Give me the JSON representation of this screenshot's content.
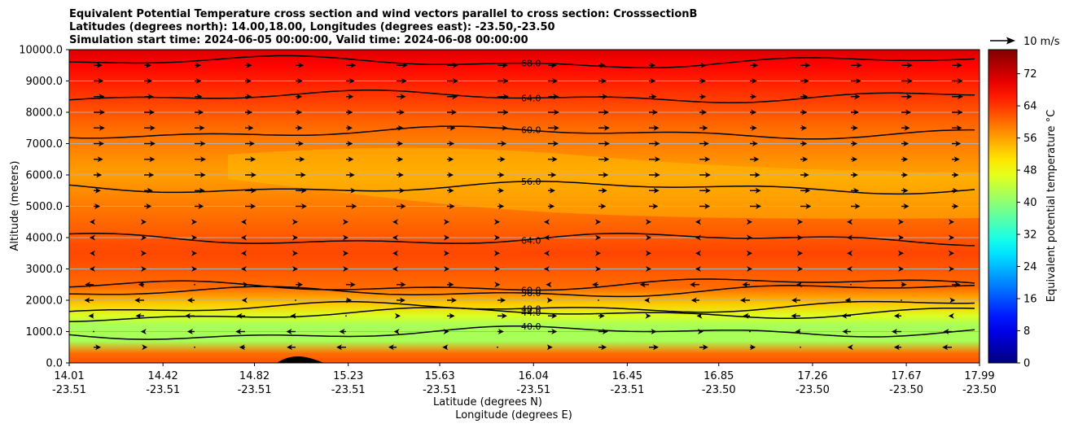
{
  "chart_data": {
    "type": "contour",
    "title_lines": [
      "Equivalent Potential Temperature cross section and wind vectors parallel to cross section: CrosssectionB",
      "Latitudes (degrees north): 14.00,18.00, Longitudes (degrees east): -23.50,-23.50",
      "Simulation start time: 2024-06-05 00:00:00, Valid time: 2024-06-08 00:00:00"
    ],
    "ylabel": "Altitude (meters)",
    "xlabel_lat": "Latitude (degrees N)",
    "xlabel_lon": "Longitude (degrees E)",
    "ylim": [
      0,
      10000
    ],
    "y_ticks": [
      "0.0",
      "1000.0",
      "2000.0",
      "3000.0",
      "4000.0",
      "5000.0",
      "6000.0",
      "7000.0",
      "8000.0",
      "9000.0",
      "10000.0"
    ],
    "x_ticks_lat": [
      "14.01",
      "14.42",
      "14.82",
      "15.23",
      "15.63",
      "16.04",
      "16.45",
      "16.85",
      "17.26",
      "17.67",
      "17.99"
    ],
    "x_ticks_lon": [
      "-23.51",
      "-23.51",
      "-23.51",
      "-23.51",
      "-23.51",
      "-23.51",
      "-23.51",
      "-23.50",
      "-23.50",
      "-23.50",
      "-23.50"
    ],
    "colorbar": {
      "label": "Equivalent potential temperature $^\\circ$C",
      "label_text": "Equivalent potential temperature °C",
      "ticks": [
        "0",
        "8",
        "16",
        "24",
        "32",
        "40",
        "48",
        "56",
        "64",
        "72"
      ],
      "range": [
        0,
        78
      ],
      "colormap": "jet"
    },
    "quiver_key": "10 m/s",
    "contour_levels": [
      {
        "value": 40,
        "label": "40.0",
        "altitude_m": 900
      },
      {
        "value": 44,
        "label": "44.0",
        "altitude_m": 1500
      },
      {
        "value": 48,
        "label": "48.0",
        "altitude_m": 1700
      },
      {
        "value": 56,
        "label": "56.0",
        "altitude_m": 2200
      },
      {
        "value": 60,
        "label": "60.0",
        "altitude_m": 2400
      },
      {
        "value": 64,
        "label": "64.0",
        "altitude_m": 3950
      },
      {
        "value": 56,
        "label": "56.0",
        "altitude_m": 5600
      },
      {
        "value": 60,
        "label": "60.0",
        "altitude_m": 7350
      },
      {
        "value": 64,
        "label": "64.0",
        "altitude_m": 8500
      },
      {
        "value": 68,
        "label": "68.0",
        "altitude_m": 9600
      }
    ],
    "theta_e_profile": [
      {
        "altitude_m": 0,
        "value": 62
      },
      {
        "altitude_m": 300,
        "value": 60
      },
      {
        "altitude_m": 700,
        "value": 42
      },
      {
        "altitude_m": 1200,
        "value": 42
      },
      {
        "altitude_m": 1500,
        "value": 46
      },
      {
        "altitude_m": 1900,
        "value": 53
      },
      {
        "altitude_m": 2400,
        "value": 60
      },
      {
        "altitude_m": 3500,
        "value": 63
      },
      {
        "altitude_m": 5000,
        "value": 59
      },
      {
        "altitude_m": 6000,
        "value": 56
      },
      {
        "altitude_m": 7500,
        "value": 60
      },
      {
        "altitude_m": 8500,
        "value": 64
      },
      {
        "altitude_m": 9500,
        "value": 68
      },
      {
        "altitude_m": 10000,
        "value": 71
      }
    ]
  }
}
